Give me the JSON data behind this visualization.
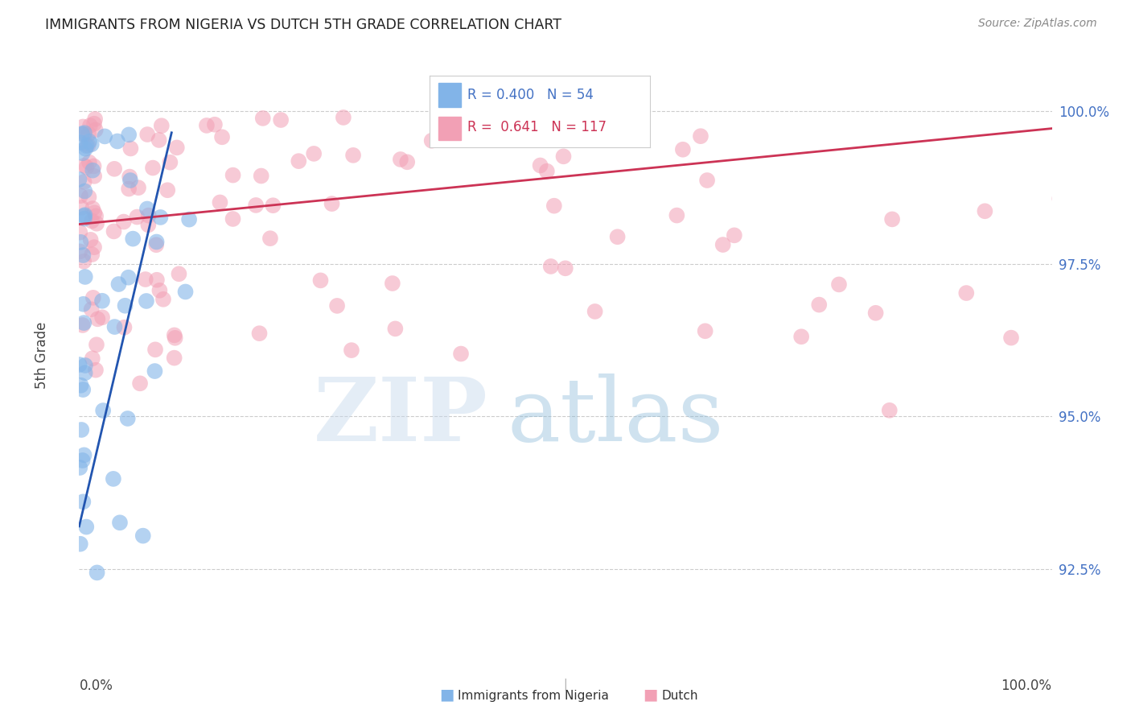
{
  "title": "IMMIGRANTS FROM NIGERIA VS DUTCH 5TH GRADE CORRELATION CHART",
  "source": "Source: ZipAtlas.com",
  "ylabel": "5th Grade",
  "yticks": [
    92.5,
    95.0,
    97.5,
    100.0
  ],
  "ytick_labels": [
    "92.5%",
    "95.0%",
    "97.5%",
    "100.0%"
  ],
  "xlim": [
    0.0,
    1.0
  ],
  "ylim": [
    91.0,
    101.0
  ],
  "legend_blue_r": "0.400",
  "legend_blue_n": "54",
  "legend_pink_r": "0.641",
  "legend_pink_n": "117",
  "blue_color": "#82B4E8",
  "pink_color": "#F2A0B5",
  "blue_line_color": "#2255B0",
  "pink_line_color": "#CC3355",
  "blue_line": [
    [
      0.0,
      93.2
    ],
    [
      0.095,
      99.65
    ]
  ],
  "pink_line": [
    [
      0.0,
      98.15
    ],
    [
      1.02,
      99.75
    ]
  ],
  "title_color": "#222222",
  "source_color": "#888888",
  "tick_label_color": "#4472C4",
  "axis_label_color": "#444444",
  "grid_color": "#cccccc",
  "legend_border_color": "#cccccc",
  "watermark_zip_color": "#C5D8EC",
  "watermark_atlas_color": "#88B8D8"
}
